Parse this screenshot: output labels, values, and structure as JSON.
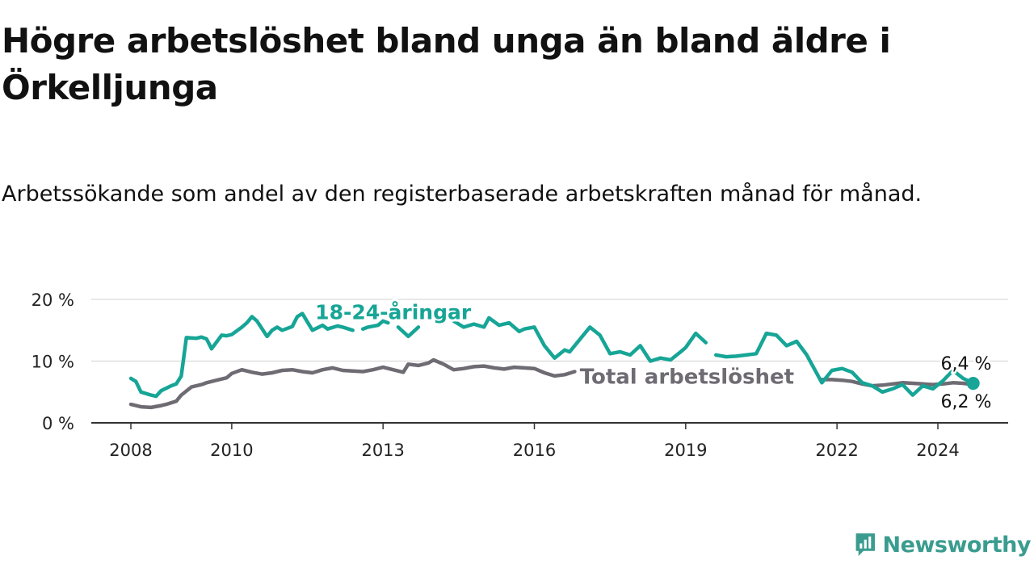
{
  "title": "Högre arbetslöshet bland unga än bland äldre i Örkelljunga",
  "subtitle": "Arbetssökande som andel av den registerbaserade arbetskraften månad för månad.",
  "brand": "Newsworthy",
  "colors": {
    "youth": "#16a596",
    "total": "#6e6b73",
    "grid": "#d9d9d9",
    "axis": "#333333",
    "brand": "#3a9c8f"
  },
  "chart_data": {
    "type": "line",
    "title": "Högre arbetslöshet bland unga än bland äldre i Örkelljunga",
    "subtitle": "Arbetssökande som andel av den registerbaserade arbetskraften månad för månad.",
    "xlabel": "",
    "ylabel": "",
    "xlim": [
      2007.5,
      2025.5
    ],
    "ylim": [
      0,
      20
    ],
    "yticks": [
      0,
      10,
      20
    ],
    "ytick_labels": [
      "0 %",
      "10 %",
      "20 %"
    ],
    "xticks": [
      2008,
      2010,
      2013,
      2016,
      2019,
      2022,
      2024
    ],
    "xtick_labels": [
      "2008",
      "2010",
      "2013",
      "2016",
      "2019",
      "2022",
      "2024"
    ],
    "grid": true,
    "series": [
      {
        "name": "18-24-åringar",
        "label": "18-24-åringar",
        "end_label": "6,4 %",
        "x": [
          2008.0,
          2008.1,
          2008.2,
          2008.4,
          2008.5,
          2008.6,
          2008.8,
          2008.9,
          2009.0,
          2009.1,
          2009.3,
          2009.4,
          2009.5,
          2009.6,
          2009.8,
          2009.9,
          2010.0,
          2010.2,
          2010.3,
          2010.4,
          2010.5,
          2010.7,
          2010.8,
          2010.9,
          2011.0,
          2011.2,
          2011.3,
          2011.4,
          2011.6,
          2011.7,
          2011.8,
          2011.9,
          2012.1,
          2012.2,
          2012.4,
          2012.6,
          2012.7,
          2012.9,
          2013.0,
          2013.1,
          2013.3,
          2013.5,
          2013.7,
          2013.8,
          2014.0,
          2014.2,
          2014.4,
          2014.6,
          2014.8,
          2015.0,
          2015.1,
          2015.3,
          2015.5,
          2015.7,
          2015.8,
          2016.0,
          2016.1,
          2016.2,
          2016.4,
          2016.6,
          2016.7,
          2016.9,
          2017.1,
          2017.3,
          2017.5,
          2017.7,
          2017.9,
          2018.1,
          2018.3,
          2018.5,
          2018.7,
          2018.9,
          2019.0,
          2019.2,
          2019.4,
          2019.6,
          2019.8,
          2020.0,
          2020.2,
          2020.4,
          2020.6,
          2020.8,
          2021.0,
          2021.2,
          2021.4,
          2021.5,
          2021.7,
          2021.9,
          2022.1,
          2022.3,
          2022.5,
          2022.7,
          2022.9,
          2023.1,
          2023.3,
          2023.5,
          2023.7,
          2023.9,
          2024.1,
          2024.3,
          2024.5,
          2024.7
        ],
        "y": [
          7.2,
          6.7,
          5.0,
          4.5,
          4.3,
          5.2,
          6.0,
          6.3,
          7.6,
          13.8,
          13.7,
          13.9,
          13.6,
          12.0,
          14.2,
          14.1,
          14.3,
          15.5,
          16.2,
          17.2,
          16.5,
          14.0,
          15.0,
          15.5,
          15.0,
          15.6,
          17.2,
          17.7,
          15.0,
          15.4,
          15.8,
          15.2,
          15.7,
          15.5,
          15.0,
          15.2,
          15.5,
          15.8,
          16.5,
          16.2,
          15.5,
          14.0,
          15.5,
          16.0,
          16.8,
          14.0,
          16.5,
          15.5,
          16.0,
          15.5,
          17.0,
          15.8,
          16.2,
          14.8,
          15.2,
          15.5,
          14.0,
          12.5,
          10.5,
          11.8,
          11.5,
          13.5,
          15.5,
          14.2,
          11.2,
          11.5,
          11.0,
          12.5,
          10.0,
          10.5,
          10.2,
          11.5,
          12.2,
          14.5,
          13.0,
          11.0,
          10.7,
          10.8,
          11.0,
          11.2,
          14.5,
          14.2,
          12.5,
          13.2,
          11.0,
          9.5,
          6.5,
          8.5,
          8.8,
          8.2,
          6.5,
          6.0,
          5.0,
          5.5,
          6.2,
          4.5,
          6.0,
          5.5,
          6.8,
          8.5,
          7.2,
          6.4
        ],
        "gaps_x": [
          [
            2012.45,
            2012.62
          ],
          [
            2013.12,
            2013.38
          ],
          [
            2013.62,
            2013.92
          ],
          [
            2014.08,
            2014.35
          ],
          [
            2019.45,
            2019.68
          ]
        ]
      },
      {
        "name": "Total arbetslöshet",
        "label": "Total arbetslöshet",
        "end_label": "6,2 %",
        "x": [
          2008.0,
          2008.2,
          2008.4,
          2008.6,
          2008.7,
          2008.9,
          2009.0,
          2009.2,
          2009.4,
          2009.5,
          2009.7,
          2009.9,
          2010.0,
          2010.2,
          2010.4,
          2010.6,
          2010.8,
          2011.0,
          2011.2,
          2011.4,
          2011.6,
          2011.8,
          2012.0,
          2012.2,
          2012.4,
          2012.6,
          2012.8,
          2013.0,
          2013.2,
          2013.4,
          2013.5,
          2013.7,
          2013.9,
          2014.0,
          2014.2,
          2014.4,
          2014.6,
          2014.8,
          2015.0,
          2015.2,
          2015.4,
          2015.6,
          2015.8,
          2016.0,
          2016.2,
          2016.4,
          2016.6,
          2016.8,
          2021.7,
          2021.9,
          2022.1,
          2022.3,
          2022.5,
          2022.7,
          2022.9,
          2023.1,
          2023.3,
          2023.5,
          2023.7,
          2023.9,
          2024.1,
          2024.3,
          2024.5,
          2024.7
        ],
        "y": [
          3.0,
          2.6,
          2.5,
          2.8,
          3.0,
          3.5,
          4.5,
          5.8,
          6.2,
          6.5,
          6.9,
          7.3,
          8.0,
          8.6,
          8.2,
          7.9,
          8.1,
          8.5,
          8.6,
          8.3,
          8.1,
          8.6,
          8.9,
          8.5,
          8.4,
          8.3,
          8.6,
          9.0,
          8.6,
          8.2,
          9.5,
          9.3,
          9.7,
          10.2,
          9.5,
          8.6,
          8.8,
          9.1,
          9.2,
          8.9,
          8.7,
          9.0,
          8.9,
          8.8,
          8.1,
          7.6,
          7.8,
          8.3,
          7.0,
          7.0,
          6.9,
          6.7,
          6.3,
          6.0,
          6.1,
          6.3,
          6.5,
          6.4,
          6.3,
          6.2,
          6.3,
          6.5,
          6.4,
          6.2
        ],
        "gaps_x": [
          [
            2016.82,
            2021.75
          ]
        ]
      }
    ],
    "annotations": [
      {
        "series": "18-24-åringar",
        "text": "18-24-åringar",
        "x": 2013.2,
        "y": 18.0
      },
      {
        "series": "Total arbetslöshet",
        "text": "Total arbetslöshet",
        "x": 2016.9,
        "y": 7.5
      }
    ]
  }
}
